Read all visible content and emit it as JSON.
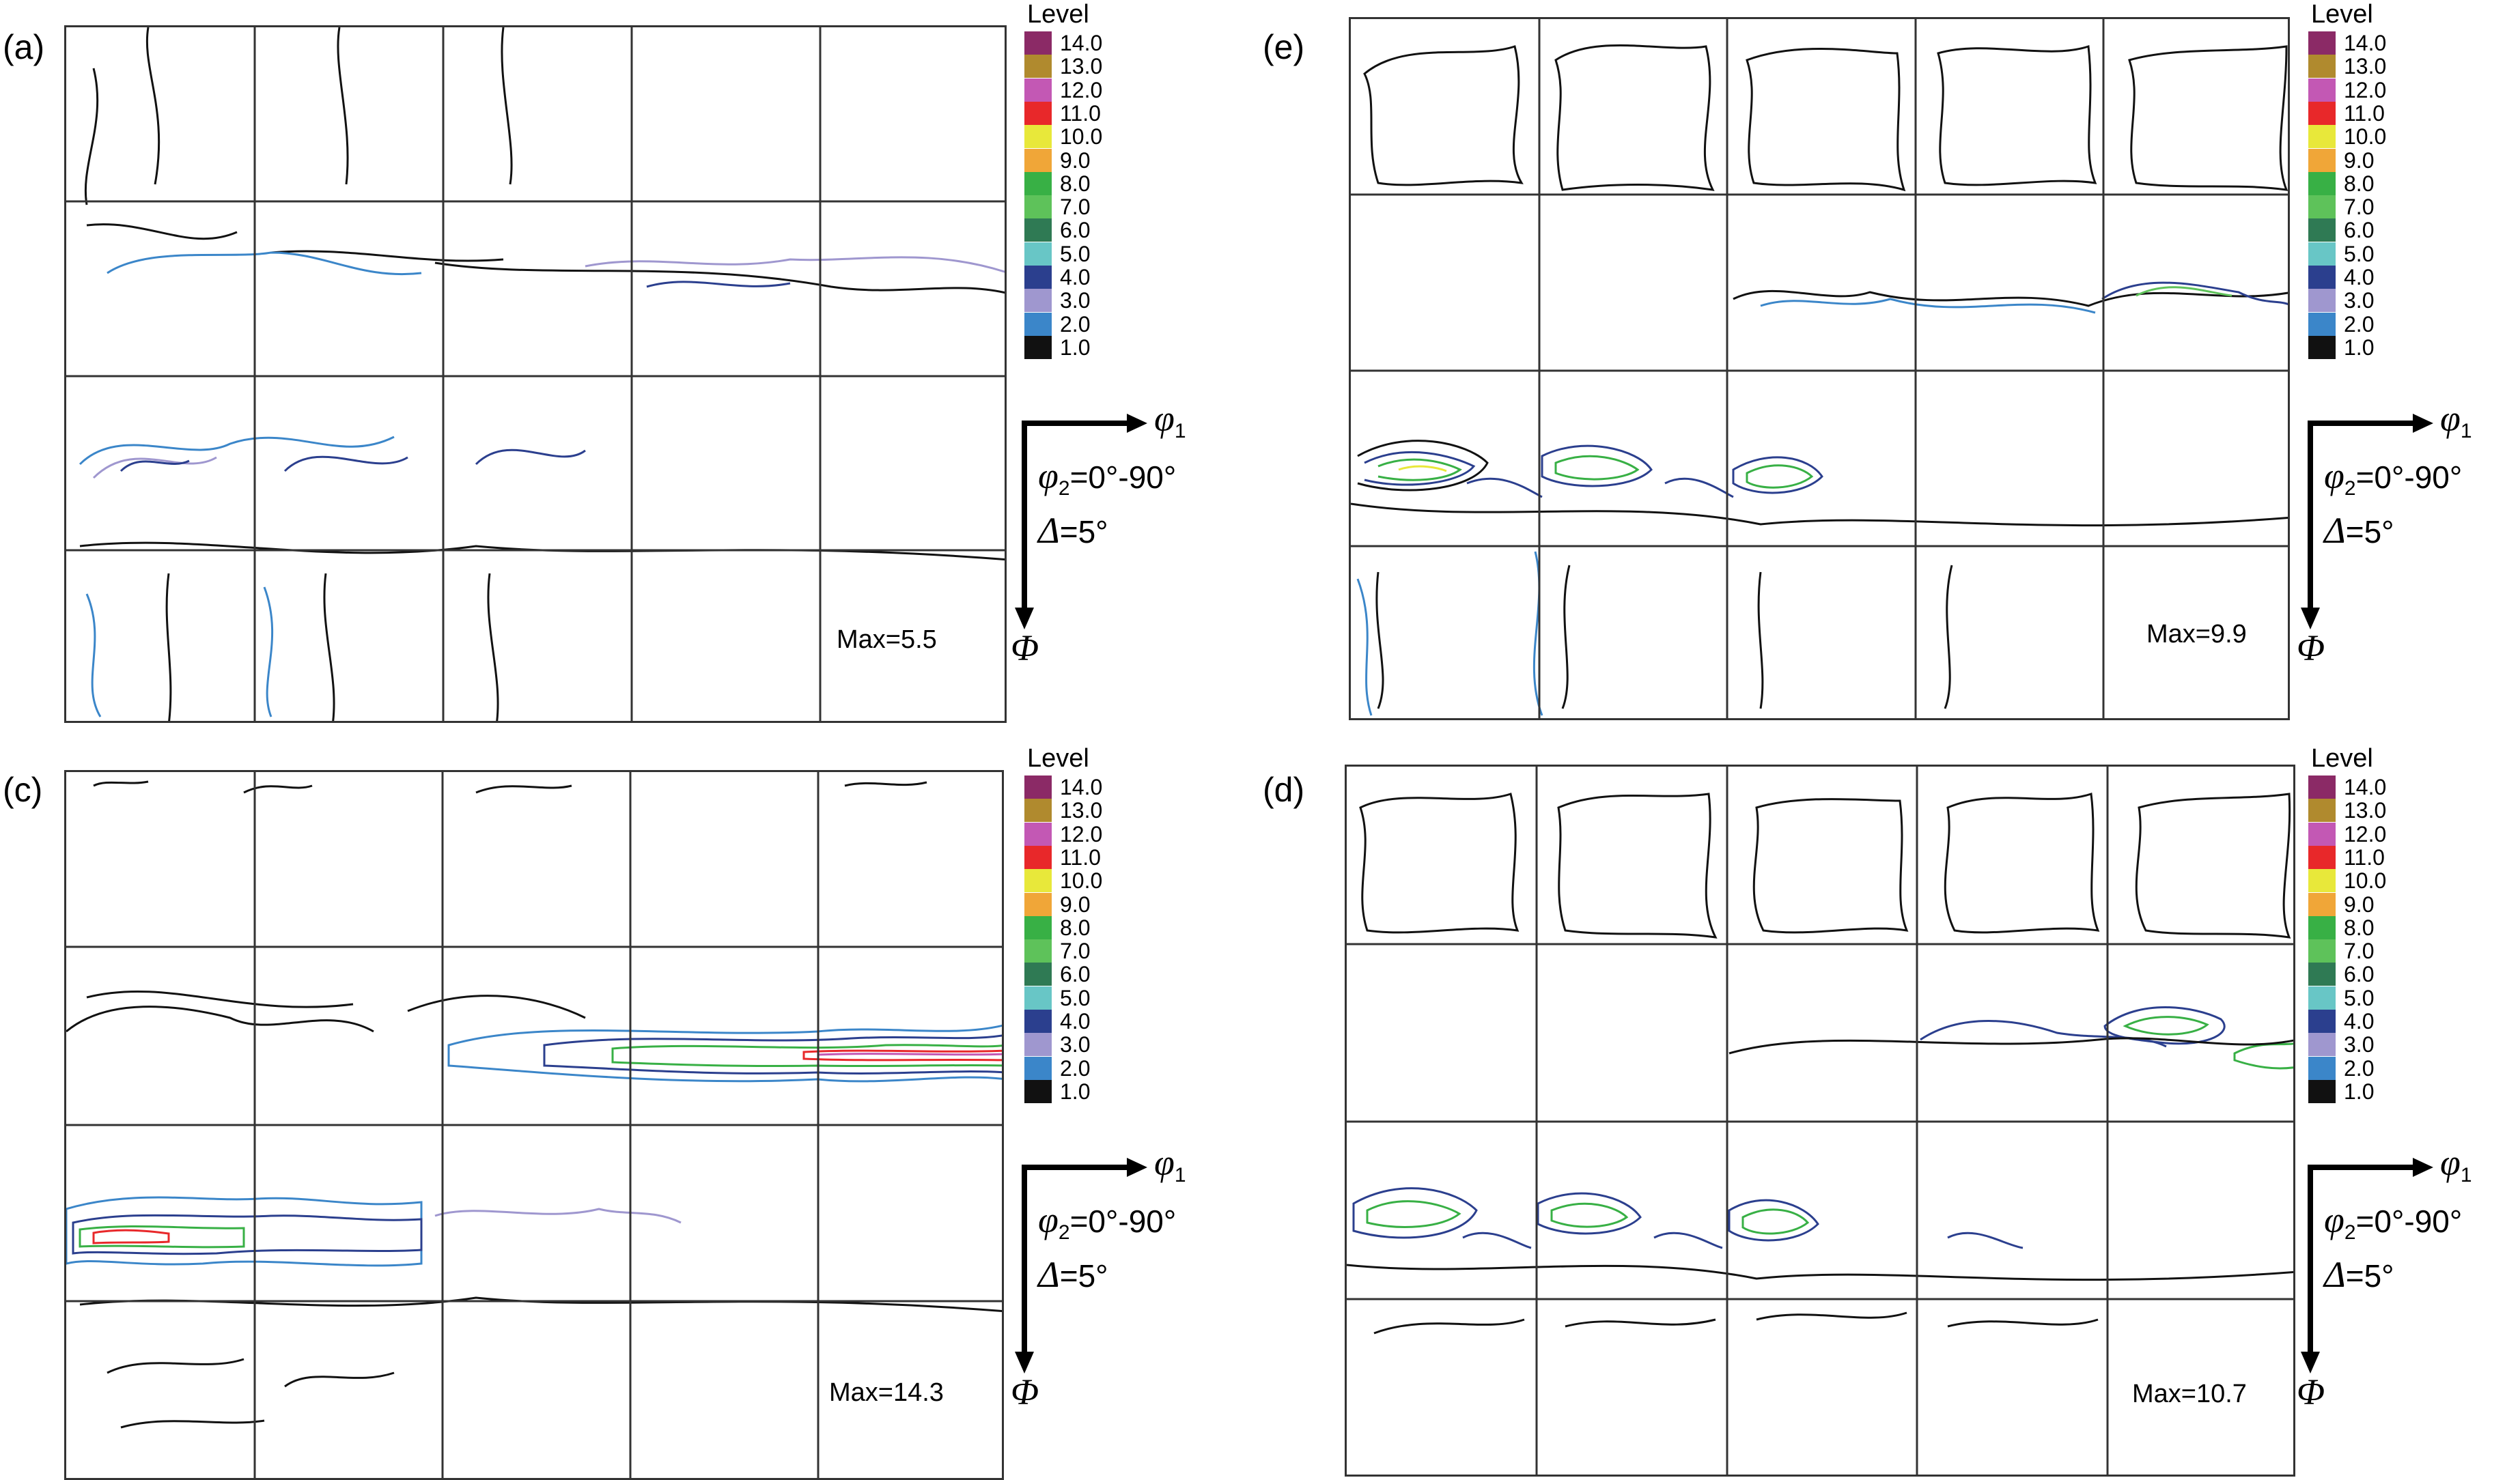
{
  "legend_title": "Level",
  "legend_levels": [
    {
      "label": "14.0",
      "color": "#8b2a66"
    },
    {
      "label": "13.0",
      "color": "#b08a2e"
    },
    {
      "label": "12.0",
      "color": "#c358b4"
    },
    {
      "label": "11.0",
      "color": "#e8282a"
    },
    {
      "label": "10.0",
      "color": "#e8e83a"
    },
    {
      "label": "9.0",
      "color": "#f0a638"
    },
    {
      "label": "8.0",
      "color": "#38b045"
    },
    {
      "label": "7.0",
      "color": "#5ec25a"
    },
    {
      "label": "6.0",
      "color": "#2f7a54"
    },
    {
      "label": "5.0",
      "color": "#68c6c6"
    },
    {
      "label": "4.0",
      "color": "#2b3f8e"
    },
    {
      "label": "3.0",
      "color": "#9f97cf"
    },
    {
      "label": "2.0",
      "color": "#3b86c9"
    },
    {
      "label": "1.0",
      "color": "#111111"
    }
  ],
  "axes": {
    "phi1_symbol": "φ",
    "phi1_sub": "1",
    "phi2_symbol": "φ",
    "phi2_sub": "2",
    "phi2_range": "=0°-90°",
    "delta_symbol": "Δ",
    "delta_value": "=5°",
    "Phi_symbol": "Φ"
  },
  "panels": [
    {
      "label": "(a)",
      "max": "Max=5.5"
    },
    {
      "label": "(e)",
      "max": "Max=9.9"
    },
    {
      "label": "(c)",
      "max": "Max=14.3"
    },
    {
      "label": "(d)",
      "max": "Max=10.7"
    }
  ]
}
